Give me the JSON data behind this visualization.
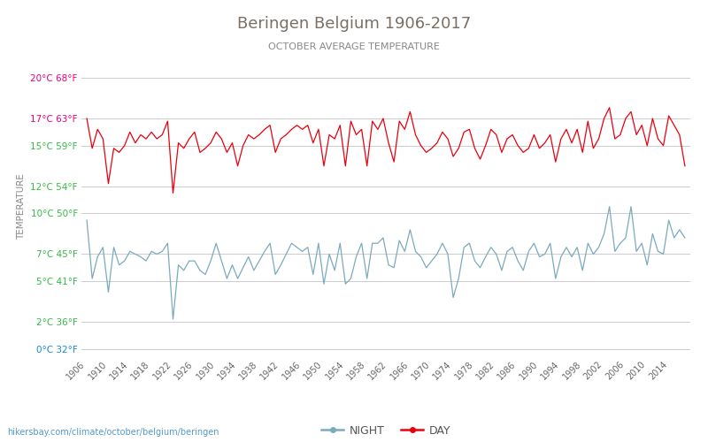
{
  "title": "Beringen Belgium 1906-2017",
  "subtitle": "OCTOBER AVERAGE TEMPERATURE",
  "xlabel_bottom": "hikersbay.com/climate/october/belgium/beringen",
  "ylabel": "TEMPERATURE",
  "years": [
    1906,
    1907,
    1908,
    1909,
    1910,
    1911,
    1912,
    1913,
    1914,
    1915,
    1916,
    1917,
    1918,
    1919,
    1920,
    1921,
    1922,
    1923,
    1924,
    1925,
    1926,
    1927,
    1928,
    1929,
    1930,
    1931,
    1932,
    1933,
    1934,
    1935,
    1936,
    1937,
    1938,
    1939,
    1940,
    1941,
    1942,
    1943,
    1944,
    1945,
    1946,
    1947,
    1948,
    1949,
    1950,
    1951,
    1952,
    1953,
    1954,
    1955,
    1956,
    1957,
    1958,
    1959,
    1960,
    1961,
    1962,
    1963,
    1964,
    1965,
    1966,
    1967,
    1968,
    1969,
    1970,
    1971,
    1972,
    1973,
    1974,
    1975,
    1976,
    1977,
    1978,
    1979,
    1980,
    1981,
    1982,
    1983,
    1984,
    1985,
    1986,
    1987,
    1988,
    1989,
    1990,
    1991,
    1992,
    1993,
    1994,
    1995,
    1996,
    1997,
    1998,
    1999,
    2000,
    2001,
    2002,
    2003,
    2004,
    2005,
    2006,
    2007,
    2008,
    2009,
    2010,
    2011,
    2012,
    2013,
    2014,
    2015,
    2016,
    2017
  ],
  "day_temps": [
    17.0,
    14.8,
    16.2,
    15.5,
    12.2,
    14.8,
    14.5,
    15.0,
    16.0,
    15.2,
    15.8,
    15.5,
    16.0,
    15.5,
    15.8,
    16.8,
    11.5,
    15.2,
    14.8,
    15.5,
    16.0,
    14.5,
    14.8,
    15.2,
    16.0,
    15.5,
    14.5,
    15.2,
    13.5,
    15.0,
    15.8,
    15.5,
    15.8,
    16.2,
    16.5,
    14.5,
    15.5,
    15.8,
    16.2,
    16.5,
    16.2,
    16.5,
    15.2,
    16.2,
    13.5,
    15.8,
    15.5,
    16.5,
    13.5,
    16.8,
    15.8,
    16.2,
    13.5,
    16.8,
    16.2,
    17.0,
    15.2,
    13.8,
    16.8,
    16.2,
    17.5,
    15.8,
    15.0,
    14.5,
    14.8,
    15.2,
    16.0,
    15.5,
    14.2,
    14.8,
    16.0,
    16.2,
    14.8,
    14.0,
    15.0,
    16.2,
    15.8,
    14.5,
    15.5,
    15.8,
    15.0,
    14.5,
    14.8,
    15.8,
    14.8,
    15.2,
    15.8,
    13.8,
    15.5,
    16.2,
    15.2,
    16.2,
    14.5,
    16.8,
    14.8,
    15.5,
    17.0,
    17.8,
    15.5,
    15.8,
    17.0,
    17.5,
    15.8,
    16.5,
    15.0,
    17.0,
    15.5,
    15.0,
    17.2,
    16.5,
    15.8,
    13.5
  ],
  "night_temps": [
    9.5,
    5.2,
    6.8,
    7.5,
    4.2,
    7.5,
    6.2,
    6.5,
    7.2,
    7.0,
    6.8,
    6.5,
    7.2,
    7.0,
    7.2,
    7.8,
    2.2,
    6.2,
    5.8,
    6.5,
    6.5,
    5.8,
    5.5,
    6.5,
    7.8,
    6.5,
    5.2,
    6.2,
    5.2,
    6.0,
    6.8,
    5.8,
    6.5,
    7.2,
    7.8,
    5.5,
    6.2,
    7.0,
    7.8,
    7.5,
    7.2,
    7.5,
    5.5,
    7.8,
    4.8,
    7.0,
    5.8,
    7.8,
    4.8,
    5.2,
    6.8,
    7.8,
    5.2,
    7.8,
    7.8,
    8.2,
    6.2,
    6.0,
    8.0,
    7.2,
    8.8,
    7.2,
    6.8,
    6.0,
    6.5,
    7.0,
    7.8,
    7.0,
    3.8,
    5.2,
    7.5,
    7.8,
    6.5,
    6.0,
    6.8,
    7.5,
    7.0,
    5.8,
    7.2,
    7.5,
    6.5,
    5.8,
    7.2,
    7.8,
    6.8,
    7.0,
    7.8,
    5.2,
    6.8,
    7.5,
    6.8,
    7.5,
    5.8,
    7.8,
    7.0,
    7.5,
    8.5,
    10.5,
    7.2,
    7.8,
    8.2,
    10.5,
    7.2,
    7.8,
    6.2,
    8.5,
    7.2,
    7.0,
    9.5,
    8.2,
    8.8,
    8.2
  ],
  "day_color": "#e8000d",
  "night_color": "#7baabe",
  "title_color": "#796f65",
  "subtitle_color": "#888888",
  "ylabel_color": "#888888",
  "ytick_labels": [
    "20°C 68°F",
    "17°C 63°F",
    "15°C 59°F",
    "12°C 54°F",
    "10°C 50°F",
    "7°C 45°F",
    "5°C 41°F",
    "2°C 36°F",
    "0°C 32°F"
  ],
  "ytick_values": [
    20,
    17,
    15,
    12,
    10,
    7,
    5,
    2,
    0
  ],
  "ytick_label_colors": [
    "#e8007a",
    "#e8007a",
    "#33bb44",
    "#33bb44",
    "#33bb44",
    "#33bb44",
    "#33bb44",
    "#33bb44",
    "#1188dd"
  ],
  "ylim": [
    -0.5,
    21.5
  ],
  "grid_color": "#cccccc",
  "bg_color": "#ffffff",
  "legend_night_label": "NIGHT",
  "legend_day_label": "DAY",
  "bottom_url_color": "#5599cc",
  "xtick_step": 4
}
